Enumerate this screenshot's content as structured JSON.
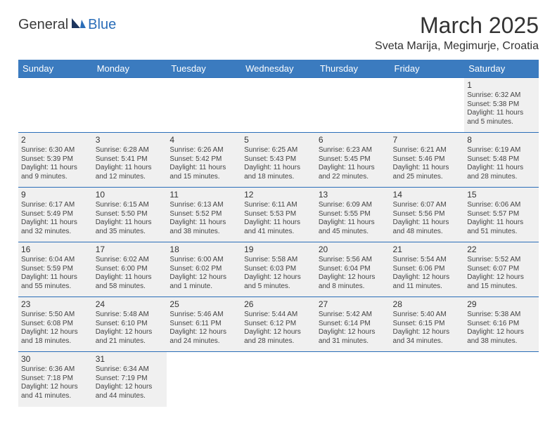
{
  "logo": {
    "part1": "General",
    "part2": "Blue"
  },
  "title": "March 2025",
  "location": "Sveta Marija, Megimurje, Croatia",
  "colors": {
    "header_bg": "#3b7bbf",
    "header_text": "#ffffff",
    "cell_fill": "#f0f0f0",
    "border": "#2a6db8",
    "logo_accent": "#2a6db8"
  },
  "weekdays": [
    "Sunday",
    "Monday",
    "Tuesday",
    "Wednesday",
    "Thursday",
    "Friday",
    "Saturday"
  ],
  "weeks": [
    [
      null,
      null,
      null,
      null,
      null,
      null,
      {
        "n": "1",
        "sr": "Sunrise: 6:32 AM",
        "ss": "Sunset: 5:38 PM",
        "dl": "Daylight: 11 hours and 5 minutes."
      }
    ],
    [
      {
        "n": "2",
        "sr": "Sunrise: 6:30 AM",
        "ss": "Sunset: 5:39 PM",
        "dl": "Daylight: 11 hours and 9 minutes."
      },
      {
        "n": "3",
        "sr": "Sunrise: 6:28 AM",
        "ss": "Sunset: 5:41 PM",
        "dl": "Daylight: 11 hours and 12 minutes."
      },
      {
        "n": "4",
        "sr": "Sunrise: 6:26 AM",
        "ss": "Sunset: 5:42 PM",
        "dl": "Daylight: 11 hours and 15 minutes."
      },
      {
        "n": "5",
        "sr": "Sunrise: 6:25 AM",
        "ss": "Sunset: 5:43 PM",
        "dl": "Daylight: 11 hours and 18 minutes."
      },
      {
        "n": "6",
        "sr": "Sunrise: 6:23 AM",
        "ss": "Sunset: 5:45 PM",
        "dl": "Daylight: 11 hours and 22 minutes."
      },
      {
        "n": "7",
        "sr": "Sunrise: 6:21 AM",
        "ss": "Sunset: 5:46 PM",
        "dl": "Daylight: 11 hours and 25 minutes."
      },
      {
        "n": "8",
        "sr": "Sunrise: 6:19 AM",
        "ss": "Sunset: 5:48 PM",
        "dl": "Daylight: 11 hours and 28 minutes."
      }
    ],
    [
      {
        "n": "9",
        "sr": "Sunrise: 6:17 AM",
        "ss": "Sunset: 5:49 PM",
        "dl": "Daylight: 11 hours and 32 minutes."
      },
      {
        "n": "10",
        "sr": "Sunrise: 6:15 AM",
        "ss": "Sunset: 5:50 PM",
        "dl": "Daylight: 11 hours and 35 minutes."
      },
      {
        "n": "11",
        "sr": "Sunrise: 6:13 AM",
        "ss": "Sunset: 5:52 PM",
        "dl": "Daylight: 11 hours and 38 minutes."
      },
      {
        "n": "12",
        "sr": "Sunrise: 6:11 AM",
        "ss": "Sunset: 5:53 PM",
        "dl": "Daylight: 11 hours and 41 minutes."
      },
      {
        "n": "13",
        "sr": "Sunrise: 6:09 AM",
        "ss": "Sunset: 5:55 PM",
        "dl": "Daylight: 11 hours and 45 minutes."
      },
      {
        "n": "14",
        "sr": "Sunrise: 6:07 AM",
        "ss": "Sunset: 5:56 PM",
        "dl": "Daylight: 11 hours and 48 minutes."
      },
      {
        "n": "15",
        "sr": "Sunrise: 6:06 AM",
        "ss": "Sunset: 5:57 PM",
        "dl": "Daylight: 11 hours and 51 minutes."
      }
    ],
    [
      {
        "n": "16",
        "sr": "Sunrise: 6:04 AM",
        "ss": "Sunset: 5:59 PM",
        "dl": "Daylight: 11 hours and 55 minutes."
      },
      {
        "n": "17",
        "sr": "Sunrise: 6:02 AM",
        "ss": "Sunset: 6:00 PM",
        "dl": "Daylight: 11 hours and 58 minutes."
      },
      {
        "n": "18",
        "sr": "Sunrise: 6:00 AM",
        "ss": "Sunset: 6:02 PM",
        "dl": "Daylight: 12 hours and 1 minute."
      },
      {
        "n": "19",
        "sr": "Sunrise: 5:58 AM",
        "ss": "Sunset: 6:03 PM",
        "dl": "Daylight: 12 hours and 5 minutes."
      },
      {
        "n": "20",
        "sr": "Sunrise: 5:56 AM",
        "ss": "Sunset: 6:04 PM",
        "dl": "Daylight: 12 hours and 8 minutes."
      },
      {
        "n": "21",
        "sr": "Sunrise: 5:54 AM",
        "ss": "Sunset: 6:06 PM",
        "dl": "Daylight: 12 hours and 11 minutes."
      },
      {
        "n": "22",
        "sr": "Sunrise: 5:52 AM",
        "ss": "Sunset: 6:07 PM",
        "dl": "Daylight: 12 hours and 15 minutes."
      }
    ],
    [
      {
        "n": "23",
        "sr": "Sunrise: 5:50 AM",
        "ss": "Sunset: 6:08 PM",
        "dl": "Daylight: 12 hours and 18 minutes."
      },
      {
        "n": "24",
        "sr": "Sunrise: 5:48 AM",
        "ss": "Sunset: 6:10 PM",
        "dl": "Daylight: 12 hours and 21 minutes."
      },
      {
        "n": "25",
        "sr": "Sunrise: 5:46 AM",
        "ss": "Sunset: 6:11 PM",
        "dl": "Daylight: 12 hours and 24 minutes."
      },
      {
        "n": "26",
        "sr": "Sunrise: 5:44 AM",
        "ss": "Sunset: 6:12 PM",
        "dl": "Daylight: 12 hours and 28 minutes."
      },
      {
        "n": "27",
        "sr": "Sunrise: 5:42 AM",
        "ss": "Sunset: 6:14 PM",
        "dl": "Daylight: 12 hours and 31 minutes."
      },
      {
        "n": "28",
        "sr": "Sunrise: 5:40 AM",
        "ss": "Sunset: 6:15 PM",
        "dl": "Daylight: 12 hours and 34 minutes."
      },
      {
        "n": "29",
        "sr": "Sunrise: 5:38 AM",
        "ss": "Sunset: 6:16 PM",
        "dl": "Daylight: 12 hours and 38 minutes."
      }
    ],
    [
      {
        "n": "30",
        "sr": "Sunrise: 6:36 AM",
        "ss": "Sunset: 7:18 PM",
        "dl": "Daylight: 12 hours and 41 minutes."
      },
      {
        "n": "31",
        "sr": "Sunrise: 6:34 AM",
        "ss": "Sunset: 7:19 PM",
        "dl": "Daylight: 12 hours and 44 minutes."
      },
      null,
      null,
      null,
      null,
      null
    ]
  ]
}
